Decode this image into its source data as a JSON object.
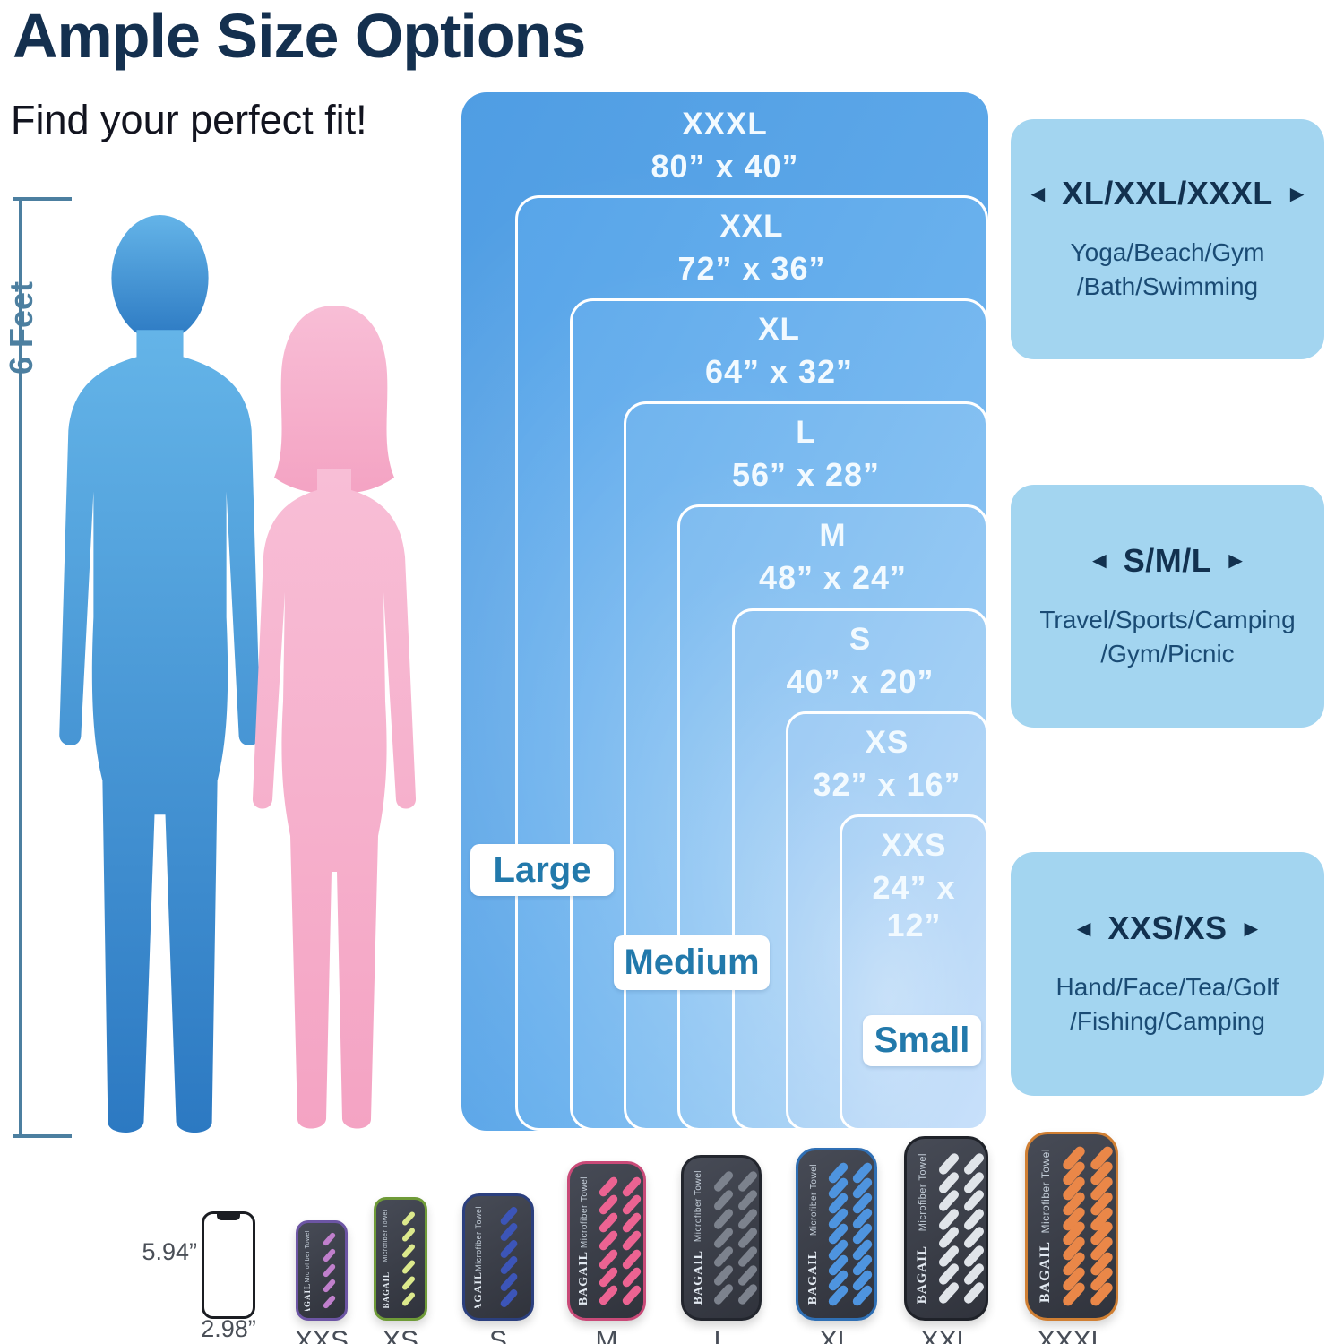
{
  "header": {
    "title": "Ample Size Options",
    "subtitle": "Find your perfect fit!"
  },
  "scale": {
    "height_label": "6 Feet"
  },
  "towel_sizes": [
    {
      "name": "XXXL",
      "dims": "80” x 40”"
    },
    {
      "name": "XXL",
      "dims": "72” x 36”"
    },
    {
      "name": "XL",
      "dims": "64” x 32”"
    },
    {
      "name": "L",
      "dims": "56” x 28”"
    },
    {
      "name": "M",
      "dims": "48” x 24”"
    },
    {
      "name": "S",
      "dims": "40” x 20”"
    },
    {
      "name": "XS",
      "dims": "32” x 16”"
    },
    {
      "name": "XXS",
      "dims": "24” x 12”"
    }
  ],
  "group_tags": [
    {
      "label": "Large"
    },
    {
      "label": "Medium"
    },
    {
      "label": "Small"
    }
  ],
  "category_cards": [
    {
      "left_arrow": "◄",
      "title": "XL/XXL/XXXL",
      "right_arrow": "►",
      "line1": "Yoga/Beach/Gym",
      "line2": "/Bath/Swimming"
    },
    {
      "left_arrow": "◄",
      "title": "S/M/L",
      "right_arrow": "►",
      "line1": "Travel/Sports/Camping",
      "line2": "/Gym/Picnic"
    },
    {
      "left_arrow": "◄",
      "title": "XXS/XS",
      "right_arrow": "►",
      "line1": "Hand/Face/Tea/Golf",
      "line2": "/Fishing/Camping"
    }
  ],
  "phone": {
    "height_label": "5.94”",
    "width_label": "2.98”"
  },
  "brand": {
    "name": "BAGAIL",
    "product": "Microfiber Towel"
  },
  "products": [
    {
      "label": "XXS",
      "trim": "#6C55A4",
      "dash": "#C07FCC",
      "columns": 1,
      "dashes_per_column": 5
    },
    {
      "label": "XS",
      "trim": "#6F9B38",
      "dash": "#DCE98C",
      "columns": 1,
      "dashes_per_column": 6
    },
    {
      "label": "S",
      "trim": "#2B3F7E",
      "dash": "#3C55B8",
      "columns": 1,
      "dashes_per_column": 6
    },
    {
      "label": "M",
      "trim": "#C94A78",
      "dash": "#EC6392",
      "columns": 2,
      "dashes_per_column": 7
    },
    {
      "label": "L",
      "trim": "#23262E",
      "dash": "#7C828D",
      "columns": 2,
      "dashes_per_column": 7
    },
    {
      "label": "XL",
      "trim": "#2F6FB4",
      "dash": "#4E94DF",
      "columns": 2,
      "dashes_per_column": 9
    },
    {
      "label": "XXL",
      "trim": "#1F2229",
      "dash": "#E0E4E9",
      "columns": 2,
      "dashes_per_column": 8
    },
    {
      "label": "XXXL",
      "trim": "#D07F33",
      "dash": "#EA8748",
      "columns": 2,
      "dashes_per_column": 10
    }
  ],
  "colors": {
    "title_navy": "#14304F",
    "rule_blue": "#4C7FA0",
    "card_bg": "#A3D5F0",
    "card_text": "#1A4B74",
    "tag_text": "#2279AB",
    "male_silhouette_top": "#64B4E8",
    "male_silhouette_bottom": "#2C79C2",
    "female_silhouette_top": "#F8BED6",
    "female_silhouette_bottom": "#F4A3C3",
    "pouch_body": "#3A3E48"
  }
}
